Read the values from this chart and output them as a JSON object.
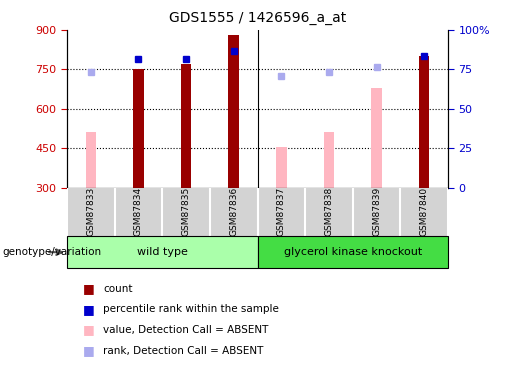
{
  "title": "GDS1555 / 1426596_a_at",
  "samples": [
    "GSM87833",
    "GSM87834",
    "GSM87835",
    "GSM87836",
    "GSM87837",
    "GSM87838",
    "GSM87839",
    "GSM87840"
  ],
  "count_values": [
    null,
    750,
    770,
    880,
    null,
    null,
    null,
    800
  ],
  "percentile_rank": [
    null,
    790,
    790,
    820,
    null,
    null,
    null,
    800
  ],
  "absent_value": [
    510,
    null,
    null,
    null,
    455,
    510,
    680,
    null
  ],
  "absent_rank": [
    740,
    null,
    null,
    null,
    725,
    740,
    760,
    null
  ],
  "ylim_left": [
    300,
    900
  ],
  "ylim_right": [
    0,
    100
  ],
  "yticks_left": [
    300,
    450,
    600,
    750,
    900
  ],
  "yticks_right": [
    0,
    25,
    50,
    75,
    100
  ],
  "grid_lines": [
    450,
    600,
    750
  ],
  "bar_color": "#990000",
  "absent_bar_color": "#ffb6c1",
  "rank_dot_color": "#0000cc",
  "absent_rank_color": "#aaaaee",
  "tick_color_left": "#cc0000",
  "tick_color_right": "#0000cc",
  "wildtype_color": "#aaffaa",
  "knockout_color": "#44dd44",
  "sample_bg_color": "#d3d3d3",
  "legend_items": [
    {
      "label": "count",
      "color": "#990000"
    },
    {
      "label": "percentile rank within the sample",
      "color": "#0000cc"
    },
    {
      "label": "value, Detection Call = ABSENT",
      "color": "#ffb6c1"
    },
    {
      "label": "rank, Detection Call = ABSENT",
      "color": "#aaaaee"
    }
  ]
}
